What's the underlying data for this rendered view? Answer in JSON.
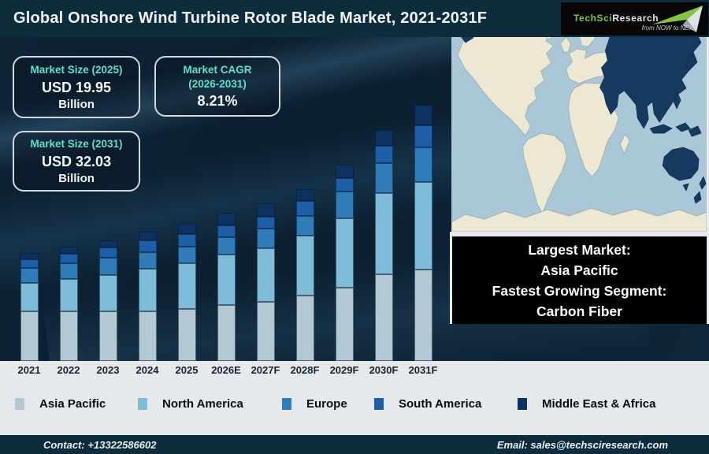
{
  "header": {
    "title": "Global Onshore Wind Turbine Rotor Blade Market, 2021-2031F",
    "logo": {
      "brand_primary": "TechSci",
      "brand_secondary": "Research",
      "tagline": "from NOW to NEXT",
      "brand_color": "#86c440"
    }
  },
  "stats": [
    {
      "label": "Market Size (2025)",
      "value": "USD 19.95",
      "unit": "Billion"
    },
    {
      "label": "Market CAGR (2026-2031)",
      "value": "8.21%",
      "unit": ""
    },
    {
      "label": "Market Size (2031)",
      "value": "USD 32.03",
      "unit": "Billion"
    }
  ],
  "chart_data": {
    "type": "bar",
    "stacked": true,
    "title": "Global Onshore Wind Turbine Rotor Blade Market, 2021-2031F",
    "categories": [
      "2021",
      "2022",
      "2023",
      "2024",
      "2025",
      "2026E",
      "2027F",
      "2028F",
      "2029F",
      "2030F",
      "2031F"
    ],
    "series": [
      {
        "name": "Asia Pacific",
        "color": "#b2c8d2",
        "values": [
          63,
          63,
          63,
          63,
          66,
          71,
          75,
          83,
          93,
          110,
          116
        ]
      },
      {
        "name": "North America",
        "color": "#7fbcda",
        "values": [
          36,
          41,
          46,
          54,
          58,
          64,
          68,
          76,
          88,
          103,
          111
        ]
      },
      {
        "name": "Europe",
        "color": "#2f7cb9",
        "values": [
          19,
          20,
          22,
          21,
          21,
          22,
          25,
          25,
          34,
          38,
          44
        ]
      },
      {
        "name": "South America",
        "color": "#1c5fa8",
        "values": [
          11,
          12,
          13,
          15,
          16,
          15,
          15,
          19,
          17,
          22,
          28
        ]
      },
      {
        "name": "Middle East & Africa",
        "color": "#0d3161",
        "values": [
          8,
          9,
          9,
          11,
          13,
          16,
          17,
          15,
          17,
          20,
          26
        ]
      }
    ],
    "value_units": "relative stacked height (no value axis shown in figure)",
    "known_totals": {
      "2025": "USD 19.95 Billion",
      "2031": "USD 32.03 Billion",
      "cagr_2026_2031": "8.21%"
    },
    "axes": {
      "x_labels_visible": true,
      "y_axis_visible": false,
      "gridlines": false
    },
    "legend_position": "bottom"
  },
  "map": {
    "highlight_region": "Asia Pacific",
    "colors": {
      "ocean": "#a9c7d6",
      "land": "#ede8d3",
      "highlight": "#163a5f"
    }
  },
  "callout": {
    "lines": [
      "Largest Market:",
      "Asia Pacific",
      "Fastest Growing Segment:",
      "Carbon Fiber"
    ]
  },
  "footer": {
    "contact": "Contact: +13322586602",
    "email": "Email: sales@techsciresearch.com"
  }
}
